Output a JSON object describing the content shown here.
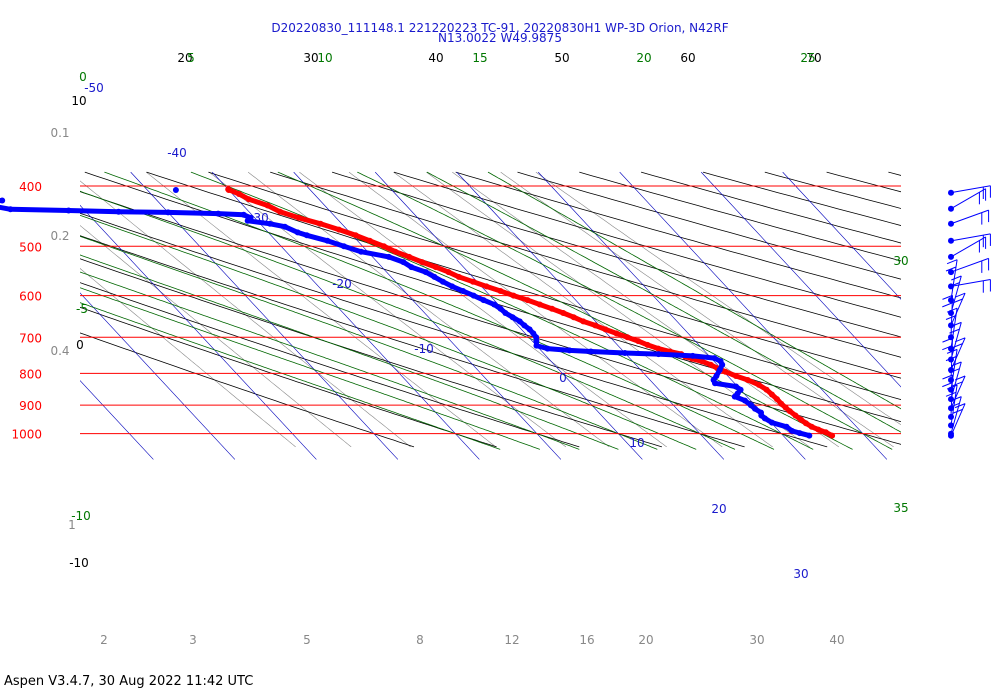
{
  "header": {
    "line1": "D20220830_111148.1 221220223 TC-91, 20220830H1 WP-3D Orion, N42RF",
    "line2": "N13.0022 W49.9875"
  },
  "footer": {
    "text": "Aspen V3.4.7, 30 Aug 2022  11:42 UTC"
  },
  "chart_data": {
    "type": "skew-t log-p",
    "pressure_axis": {
      "range": [
        1000,
        400
      ],
      "unit": "hPa",
      "log_scale": true,
      "labels": [
        "400",
        "500",
        "600",
        "700",
        "800",
        "900",
        "1000"
      ],
      "color": "#ff0000"
    },
    "isotherms": {
      "color": "#0000cc",
      "labels": [
        "-50",
        "-40",
        "-30",
        "-20",
        "-10",
        "0",
        "10",
        "20",
        "30"
      ]
    },
    "dry_adiabat_labels_top": [
      "20",
      "30",
      "40",
      "50",
      "60",
      "70"
    ],
    "moist_adiabat_labels_top": [
      "5",
      "10",
      "15",
      "20",
      "25"
    ],
    "moist_adiabat_labels_right": [
      "30",
      "35"
    ],
    "moist_adiabat_labels_left": [
      "0",
      "-5",
      "-10"
    ],
    "dry_adiabat_labels_left": [
      "10",
      "0",
      "-10"
    ],
    "mixing_ratio_labels_bottom": [
      "2",
      "3",
      "5",
      "8",
      "12",
      "16",
      "20",
      "30",
      "40"
    ],
    "mixing_ratio_labels_left": [
      "0.1",
      "0.2",
      "0.4",
      "1"
    ],
    "series": [
      {
        "name": "",
        "variable": "temperature",
        "color": "#ff0000",
        "points": [
          [
            1007,
            26.0
          ],
          [
            995,
            25.6
          ],
          [
            985,
            25.0
          ],
          [
            975,
            24.5
          ],
          [
            962,
            24.2
          ],
          [
            950,
            24.0
          ],
          [
            935,
            23.8
          ],
          [
            920,
            23.6
          ],
          [
            908,
            23.5
          ],
          [
            895,
            23.4
          ],
          [
            880,
            23.4
          ],
          [
            865,
            23.3
          ],
          [
            850,
            23.2
          ],
          [
            835,
            22.8
          ],
          [
            820,
            22.0
          ],
          [
            808,
            21.0
          ],
          [
            795,
            20.2
          ],
          [
            785,
            19.6
          ],
          [
            775,
            19.2
          ],
          [
            765,
            18.5
          ],
          [
            758,
            17.6
          ],
          [
            752,
            17.0
          ],
          [
            745,
            16.8
          ],
          [
            738,
            15.7
          ],
          [
            730,
            14.6
          ],
          [
            720,
            13.7
          ],
          [
            710,
            13.0
          ],
          [
            700,
            12.1
          ],
          [
            690,
            11.2
          ],
          [
            680,
            10.3
          ],
          [
            670,
            9.5
          ],
          [
            660,
            8.5
          ],
          [
            650,
            7.8
          ],
          [
            640,
            7.0
          ],
          [
            630,
            6.1
          ],
          [
            620,
            5.1
          ],
          [
            610,
            4.1
          ],
          [
            600,
            2.9
          ],
          [
            590,
            1.8
          ],
          [
            580,
            0.6
          ],
          [
            570,
            -0.5
          ],
          [
            560,
            -1.7
          ],
          [
            550,
            -2.4
          ],
          [
            540,
            -3.4
          ],
          [
            530,
            -4.5
          ],
          [
            520,
            -5.5
          ],
          [
            510,
            -6.6
          ],
          [
            500,
            -7.4
          ],
          [
            490,
            -8.5
          ],
          [
            480,
            -9.6
          ],
          [
            470,
            -11.0
          ],
          [
            460,
            -12.6
          ],
          [
            450,
            -14.6
          ],
          [
            440,
            -16.2
          ],
          [
            430,
            -17.0
          ],
          [
            420,
            -18.6
          ],
          [
            412,
            -19.2
          ],
          [
            405,
            -20.0
          ]
        ]
      },
      {
        "name": "",
        "variable": "dewpoint",
        "color": "#0000ff",
        "points": [
          [
            1007,
            23.2
          ],
          [
            998,
            22.3
          ],
          [
            990,
            21.6
          ],
          [
            975,
            21.4
          ],
          [
            960,
            20.1
          ],
          [
            945,
            19.7
          ],
          [
            935,
            19.6
          ],
          [
            925,
            19.9
          ],
          [
            912,
            19.6
          ],
          [
            900,
            19.5
          ],
          [
            885,
            19.3
          ],
          [
            872,
            18.5
          ],
          [
            862,
            19.2
          ],
          [
            850,
            20.0
          ],
          [
            840,
            19.8
          ],
          [
            830,
            17.6
          ],
          [
            820,
            17.8
          ],
          [
            808,
            18.6
          ],
          [
            790,
            19.7
          ],
          [
            775,
            20.6
          ],
          [
            765,
            20.8
          ],
          [
            756,
            20.4
          ],
          [
            750,
            18.0
          ],
          [
            745,
            14.0
          ],
          [
            742,
            10.0
          ],
          [
            738,
            6.0
          ],
          [
            735,
            3.5
          ],
          [
            730,
            1.0
          ],
          [
            722,
            0.0
          ],
          [
            710,
            0.5
          ],
          [
            700,
            0.9
          ],
          [
            690,
            1.0
          ],
          [
            680,
            1.0
          ],
          [
            670,
            0.8
          ],
          [
            660,
            0.7
          ],
          [
            650,
            0.3
          ],
          [
            640,
            -0.1
          ],
          [
            630,
            -0.2
          ],
          [
            620,
            -0.5
          ],
          [
            610,
            -1.3
          ],
          [
            600,
            -2.0
          ],
          [
            590,
            -2.8
          ],
          [
            580,
            -3.6
          ],
          [
            570,
            -4.2
          ],
          [
            560,
            -4.7
          ],
          [
            550,
            -5.2
          ],
          [
            540,
            -6.4
          ],
          [
            530,
            -6.8
          ],
          [
            520,
            -8.0
          ],
          [
            510,
            -10.8
          ],
          [
            500,
            -12.3
          ],
          [
            490,
            -13.7
          ],
          [
            480,
            -15.6
          ],
          [
            475,
            -16.4
          ],
          [
            465,
            -17.3
          ],
          [
            460,
            -18.8
          ],
          [
            455,
            -21.2
          ],
          [
            450,
            -20.5
          ],
          [
            445,
            -21.0
          ],
          [
            443,
            -24.0
          ],
          [
            441,
            -30.0
          ],
          [
            440,
            -36.0
          ],
          [
            438,
            -42.0
          ],
          [
            436,
            -49.0
          ],
          [
            431,
            -50.7
          ],
          [
            428,
            -52.5
          ],
          [
            425,
            -54.0
          ],
          [
            422,
            -49.0
          ]
        ]
      }
    ],
    "dewpoint_isolated_point": [
      406,
      -26.5
    ],
    "temperature_isolated_point": [
      406,
      -20.0
    ],
    "wind_barbs": {
      "color": "#0000ff",
      "levels": [
        1008,
        1000,
        970,
        940,
        910,
        880,
        850,
        820,
        790,
        760,
        730,
        700,
        670,
        640,
        610,
        580,
        550,
        520,
        490,
        460,
        435,
        410
      ]
    }
  }
}
